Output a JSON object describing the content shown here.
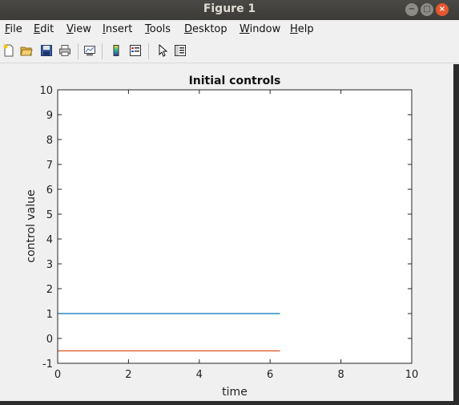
{
  "window": {
    "title": "Figure 1",
    "min_label": "−",
    "max_label": "□",
    "close_label": "×"
  },
  "menu": {
    "items": [
      {
        "key": "F",
        "rest": "ile"
      },
      {
        "key": "E",
        "rest": "dit"
      },
      {
        "key": "V",
        "rest": "iew"
      },
      {
        "key": "I",
        "rest": "nsert"
      },
      {
        "key": "T",
        "rest": "ools"
      },
      {
        "key": "D",
        "rest": "esktop"
      },
      {
        "key": "W",
        "rest": "indow"
      },
      {
        "key": "H",
        "rest": "elp"
      }
    ],
    "dock_arrow": "↘"
  },
  "toolbar": {
    "icons": [
      "new-figure-icon",
      "open-file-icon",
      "save-icon",
      "print-icon",
      "link-plot-icon",
      "colorbar-icon",
      "legend-icon",
      "pointer-icon",
      "property-editor-icon"
    ]
  },
  "colors": {
    "series1": "#0072bd",
    "series2": "#d95319"
  },
  "chart_data": {
    "type": "line",
    "title": "Initial controls",
    "xlabel": "time",
    "ylabel": "control value",
    "xlim": [
      0,
      10
    ],
    "ylim": [
      -1,
      10
    ],
    "xticks": [
      "0",
      "2",
      "4",
      "6",
      "8",
      "10"
    ],
    "yticks": [
      "-1",
      "0",
      "1",
      "2",
      "3",
      "4",
      "5",
      "6",
      "7",
      "8",
      "9",
      "10"
    ],
    "grid": false,
    "series": [
      {
        "x": [
          0,
          6.28
        ],
        "y": [
          1,
          1
        ],
        "color": "#0072bd"
      },
      {
        "x": [
          0,
          6.28
        ],
        "y": [
          -0.5,
          -0.5
        ],
        "color": "#d95319"
      }
    ]
  }
}
